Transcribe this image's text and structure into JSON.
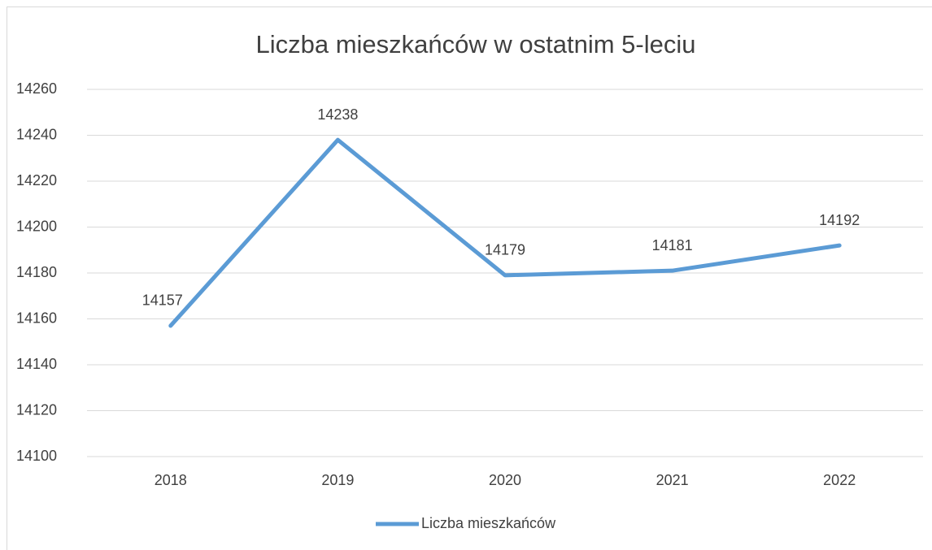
{
  "chart_data": {
    "type": "line",
    "title": "Liczba mieszkańców w ostatnim 5-leciu",
    "categories": [
      "2018",
      "2019",
      "2020",
      "2021",
      "2022"
    ],
    "series": [
      {
        "name": "Liczba mieszkańców",
        "color": "#5b9bd5",
        "values": [
          14157,
          14238,
          14179,
          14181,
          14192
        ]
      }
    ],
    "ylim": [
      14100,
      14260
    ],
    "yticks": [
      14100,
      14120,
      14140,
      14160,
      14180,
      14200,
      14220,
      14240,
      14260
    ],
    "grid": true,
    "legend": "bottom"
  }
}
